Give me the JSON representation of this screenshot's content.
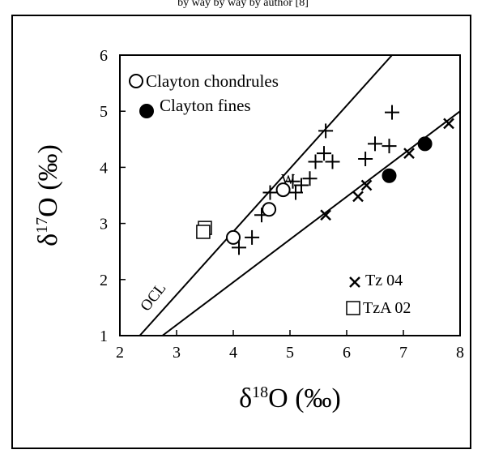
{
  "header_fragment": "by way by way by author [8]",
  "chart_data": {
    "type": "scatter",
    "title": "",
    "xlabel": "δ18O (‰)",
    "ylabel": "δ17O (‰)",
    "xlim": [
      2,
      8
    ],
    "ylim": [
      1,
      6
    ],
    "xticks": [
      "2",
      "3",
      "4",
      "5",
      "6",
      "7",
      "8"
    ],
    "yticks": [
      "1",
      "2",
      "3",
      "4",
      "5",
      "6"
    ],
    "grid": false,
    "legend_top": [
      "Clayton chondrules",
      "Clayton fines"
    ],
    "legend_bottom": [
      "Tz 04",
      "TzA 02"
    ],
    "line_labels": {
      "ocl": "OCL",
      "w": "W"
    },
    "lines": [
      {
        "name": "OCL",
        "x": [
          2.35,
          6.8
        ],
        "y": [
          1.0,
          6.0
        ]
      },
      {
        "name": "",
        "x": [
          2.75,
          8.0
        ],
        "y": [
          1.0,
          5.0
        ]
      }
    ],
    "series": [
      {
        "name": "Clayton chondrules",
        "marker": "open-circle",
        "points": [
          [
            4.0,
            2.75
          ],
          [
            4.63,
            3.25
          ],
          [
            4.88,
            3.6
          ]
        ]
      },
      {
        "name": "Clayton fines",
        "marker": "filled-circle",
        "points": [
          [
            6.75,
            3.85
          ],
          [
            7.38,
            4.42
          ]
        ]
      },
      {
        "name": "Tz 04",
        "marker": "x",
        "points": [
          [
            5.63,
            3.15
          ],
          [
            6.2,
            3.48
          ],
          [
            6.35,
            3.68
          ],
          [
            7.1,
            4.25
          ],
          [
            7.8,
            4.78
          ]
        ]
      },
      {
        "name": "TzA 02",
        "marker": "open-square",
        "points": [
          [
            3.5,
            2.92
          ],
          [
            3.47,
            2.85
          ]
        ]
      },
      {
        "name": "",
        "marker": "plus",
        "points": [
          [
            4.1,
            2.57
          ],
          [
            4.33,
            2.75
          ],
          [
            4.5,
            3.15
          ],
          [
            4.65,
            3.55
          ],
          [
            5.1,
            3.55
          ],
          [
            5.05,
            3.75
          ],
          [
            5.2,
            3.68
          ],
          [
            5.35,
            3.8
          ],
          [
            5.45,
            4.1
          ],
          [
            5.6,
            4.25
          ],
          [
            5.63,
            4.65
          ],
          [
            5.75,
            4.1
          ],
          [
            6.33,
            4.15
          ],
          [
            6.5,
            4.42
          ],
          [
            6.75,
            4.38
          ],
          [
            6.8,
            4.98
          ]
        ]
      }
    ]
  }
}
